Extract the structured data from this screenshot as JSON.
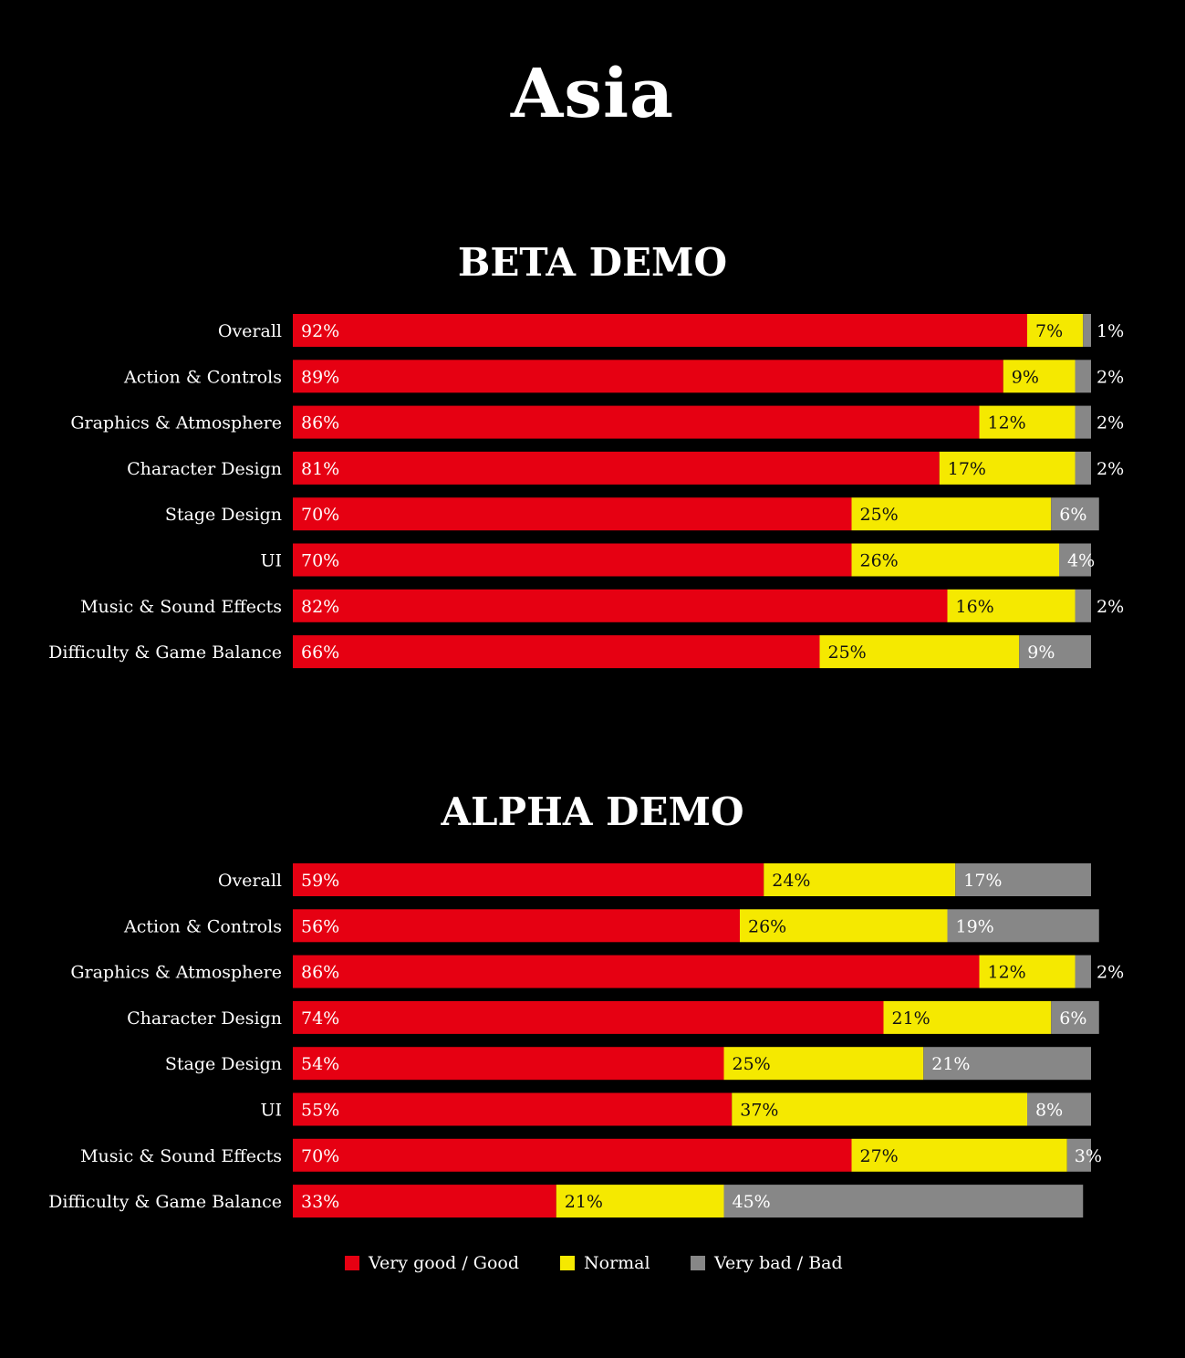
{
  "title": "Asia",
  "colors": {
    "background": "#000000",
    "good": "#e60012",
    "normal": "#f5e900",
    "bad": "#878787",
    "text_light": "#ffffff",
    "text_dark": "#111111"
  },
  "legend": [
    {
      "label": "Very good / Good",
      "color": "#e60012"
    },
    {
      "label": "Normal",
      "color": "#f5e900"
    },
    {
      "label": "Very bad / Bad",
      "color": "#878787"
    }
  ],
  "chart_data": [
    {
      "type": "bar",
      "orientation": "horizontal",
      "stacked": true,
      "title": "BETA DEMO",
      "categories": [
        "Overall",
        "Action & Controls",
        "Graphics & Atmosphere",
        "Character Design",
        "Stage Design",
        "UI",
        "Music & Sound Effects",
        "Difficulty & Game Balance"
      ],
      "series": [
        {
          "name": "Very good / Good",
          "values": [
            92,
            89,
            86,
            81,
            70,
            70,
            82,
            66
          ]
        },
        {
          "name": "Normal",
          "values": [
            7,
            9,
            12,
            17,
            25,
            26,
            16,
            25
          ]
        },
        {
          "name": "Very bad / Bad",
          "values": [
            1,
            2,
            2,
            2,
            6,
            4,
            2,
            9
          ]
        }
      ],
      "xlim": [
        0,
        100
      ],
      "legend_position": "bottom",
      "grid": false
    },
    {
      "type": "bar",
      "orientation": "horizontal",
      "stacked": true,
      "title": "ALPHA DEMO",
      "categories": [
        "Overall",
        "Action & Controls",
        "Graphics & Atmosphere",
        "Character Design",
        "Stage Design",
        "UI",
        "Music & Sound Effects",
        "Difficulty & Game Balance"
      ],
      "series": [
        {
          "name": "Very good / Good",
          "values": [
            59,
            56,
            86,
            74,
            54,
            55,
            70,
            33
          ]
        },
        {
          "name": "Normal",
          "values": [
            24,
            26,
            12,
            21,
            25,
            37,
            27,
            21
          ]
        },
        {
          "name": "Very bad / Bad",
          "values": [
            17,
            19,
            2,
            6,
            21,
            8,
            3,
            45
          ]
        }
      ],
      "xlim": [
        0,
        100
      ],
      "legend_position": "bottom",
      "grid": false
    }
  ]
}
